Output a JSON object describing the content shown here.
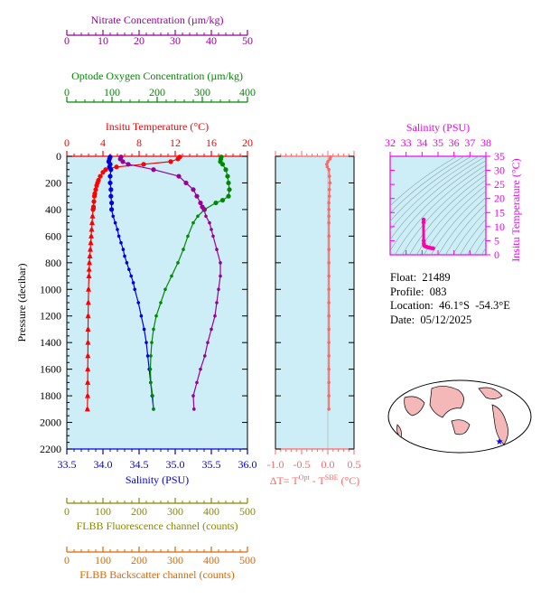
{
  "colors": {
    "temperature": "#ff0000",
    "salinity": "#0000dd",
    "oxygen": "#008800",
    "nitrate": "#990099",
    "fluorescence": "#888800",
    "backscatter": "#dd6600",
    "delta_t": "#ff6666",
    "ts_points": "#ff00aa",
    "ts_axes": "#ee00ee",
    "plot_bg": "#cdeef6",
    "land": "#f4b8b8"
  },
  "info": {
    "float": "Float:  21489",
    "profile": "Profile:  083",
    "location": "Location:  46.1°S  -54.3°E",
    "date": "Date:  05/12/2025"
  },
  "chart_data": [
    {
      "type": "line",
      "panel": "main-profile",
      "ylabel": "Pressure (decibar)",
      "ylim": [
        2200,
        0
      ],
      "yticks": [
        0,
        200,
        400,
        600,
        800,
        1000,
        1200,
        1400,
        1600,
        1800,
        2000,
        2200
      ],
      "axes": {
        "temperature": {
          "label": "Insitu Temperature (°C)",
          "lim": [
            0,
            20
          ],
          "ticks": [
            "0",
            "4",
            "8",
            "12",
            "16",
            "20"
          ]
        },
        "salinity": {
          "label": "Salinity (PSU)",
          "lim": [
            33.5,
            36.0
          ],
          "ticks": [
            "33.5",
            "34.0",
            "34.5",
            "35.0",
            "35.5",
            "36.0"
          ]
        },
        "oxygen": {
          "label": "Optode Oxygen Concentration (µm/kg)",
          "lim": [
            0,
            400
          ],
          "ticks": [
            "0",
            "100",
            "200",
            "300",
            "400"
          ]
        },
        "nitrate": {
          "label": "Nitrate Concentration (µm/kg)",
          "lim": [
            0,
            50
          ],
          "ticks": [
            "0",
            "10",
            "20",
            "30",
            "40",
            "50"
          ]
        },
        "fluorescence": {
          "label": "FLBB Fluorescence channel (counts)",
          "lim": [
            0,
            500
          ],
          "ticks": [
            "0",
            "100",
            "200",
            "300",
            "400",
            "500"
          ]
        },
        "backscatter": {
          "label": "FLBB Backscatter channel (counts)",
          "lim": [
            0,
            500
          ],
          "ticks": [
            "0",
            "100",
            "200",
            "300",
            "400",
            "500"
          ]
        }
      },
      "series": [
        {
          "name": "Insitu Temperature",
          "axis": "temperature",
          "pressure": [
            5,
            20,
            40,
            60,
            80,
            100,
            120,
            150,
            180,
            200,
            220,
            250,
            280,
            300,
            340,
            380,
            400,
            450,
            500,
            550,
            600,
            650,
            700,
            750,
            800,
            900,
            1000,
            1100,
            1200,
            1300,
            1400,
            1500,
            1600,
            1700,
            1800,
            1900
          ],
          "values": [
            12.5,
            12.3,
            11.5,
            8.5,
            5.5,
            4.3,
            4.0,
            3.7,
            3.5,
            3.4,
            3.3,
            3.2,
            3.1,
            3.05,
            3.0,
            2.95,
            2.9,
            2.85,
            2.8,
            2.75,
            2.7,
            2.65,
            2.6,
            2.55,
            2.5,
            2.45,
            2.4,
            2.38,
            2.36,
            2.35,
            2.34,
            2.33,
            2.32,
            2.31,
            2.3,
            2.28
          ]
        },
        {
          "name": "Salinity",
          "axis": "salinity",
          "pressure": [
            5,
            20,
            40,
            60,
            80,
            100,
            150,
            200,
            250,
            300,
            350,
            400,
            450,
            500,
            550,
            600,
            650,
            700,
            750,
            800,
            850,
            900,
            950,
            1000,
            1100,
            1200,
            1300,
            1400,
            1500,
            1600,
            1700,
            1800,
            1900
          ],
          "values": [
            34.1,
            34.09,
            34.08,
            34.1,
            34.09,
            34.11,
            34.1,
            34.1,
            34.11,
            34.11,
            34.12,
            34.12,
            34.14,
            34.17,
            34.2,
            34.22,
            34.25,
            34.28,
            34.3,
            34.33,
            34.36,
            34.39,
            34.42,
            34.44,
            34.49,
            34.53,
            34.57,
            34.6,
            34.62,
            34.64,
            34.66,
            34.68,
            34.7
          ]
        },
        {
          "name": "Optode Oxygen Concentration",
          "axis": "oxygen",
          "pressure": [
            5,
            20,
            40,
            60,
            100,
            150,
            200,
            250,
            300,
            330,
            350,
            400,
            450,
            500,
            600,
            700,
            800,
            900,
            1000,
            1100,
            1200,
            1300,
            1400,
            1500,
            1600,
            1700,
            1800,
            1900
          ],
          "values": [
            342,
            341,
            340,
            345,
            352,
            356,
            358,
            360,
            358,
            345,
            330,
            305,
            290,
            280,
            268,
            258,
            246,
            232,
            218,
            208,
            198,
            192,
            188,
            186,
            185,
            186,
            190,
            192
          ]
        },
        {
          "name": "Nitrate Concentration",
          "axis": "nitrate",
          "pressure": [
            5,
            20,
            40,
            60,
            100,
            150,
            200,
            250,
            300,
            350,
            380,
            400,
            450,
            500,
            550,
            600,
            700,
            800,
            900,
            1000,
            1100,
            1200,
            1300,
            1400,
            1500,
            1600,
            1700,
            1800,
            1900
          ],
          "values": [
            15,
            14.8,
            15.5,
            17,
            24,
            31,
            33,
            35,
            36,
            37,
            37.5,
            38,
            38.5,
            39.5,
            40,
            40.5,
            41.5,
            42.5,
            42.5,
            42,
            41.5,
            41,
            40,
            39,
            38.2,
            37,
            36,
            35,
            35.2
          ]
        },
        {
          "name": "Insitu Temperature markers",
          "axis": "temperature",
          "marker": "triangle",
          "pressure": [
            380,
            450,
            500,
            550,
            600,
            650,
            700,
            750,
            800,
            850,
            900,
            1000,
            1100,
            1200,
            1300,
            1400,
            1500,
            1600,
            1700,
            1800,
            1900
          ],
          "values": [
            2.95,
            2.85,
            2.8,
            2.75,
            2.7,
            2.65,
            2.6,
            2.55,
            2.5,
            2.47,
            2.45,
            2.4,
            2.38,
            2.36,
            2.35,
            2.34,
            2.33,
            2.32,
            2.31,
            2.3,
            2.28
          ]
        }
      ]
    },
    {
      "type": "line",
      "panel": "delta-t",
      "xlabel_parts": [
        "ΔT= T",
        "Opt",
        " - T",
        "SBE",
        " (°C)"
      ],
      "xlim": [
        -1.0,
        0.5
      ],
      "xticks": [
        "-1.0",
        "-0.5",
        "0.0",
        "0.5"
      ],
      "ylim": [
        2200,
        0
      ],
      "series": [
        {
          "name": "ΔT",
          "pressure": [
            5,
            20,
            40,
            60,
            80,
            100,
            150,
            200,
            250,
            300,
            350,
            400,
            450,
            500,
            600,
            700,
            800,
            900,
            1000,
            1100,
            1200,
            1300,
            1400,
            1500,
            1600,
            1700,
            1800,
            1900
          ],
          "values": [
            0.05,
            0.04,
            0.0,
            -0.02,
            -0.01,
            0.02,
            0.03,
            0.04,
            0.03,
            0.03,
            0.02,
            0.02,
            0.02,
            0.02,
            0.02,
            0.02,
            0.02,
            0.02,
            0.02,
            0.02,
            0.02,
            0.02,
            0.02,
            0.02,
            0.02,
            0.02,
            0.02,
            0.02
          ]
        }
      ]
    },
    {
      "type": "scatter",
      "panel": "ts-diagram",
      "xlabel": "Salinity (PSU)",
      "ylabel": "Insitu Temperature (°C)",
      "xlim": [
        32,
        38
      ],
      "ylim": [
        0,
        35
      ],
      "xticks": [
        "32",
        "33",
        "34",
        "35",
        "36",
        "37",
        "38"
      ],
      "yticks": [
        "0",
        "5",
        "10",
        "15",
        "20",
        "25",
        "30",
        "35"
      ],
      "series": [
        {
          "name": "T-S",
          "x": [
            34.1,
            34.09,
            34.1,
            34.11,
            34.12,
            34.15,
            34.2,
            34.3,
            34.4,
            34.5,
            34.6,
            34.7
          ],
          "y": [
            12.5,
            11.5,
            5.0,
            4.0,
            3.5,
            3.2,
            3.0,
            2.8,
            2.6,
            2.45,
            2.35,
            2.3
          ]
        }
      ]
    }
  ]
}
